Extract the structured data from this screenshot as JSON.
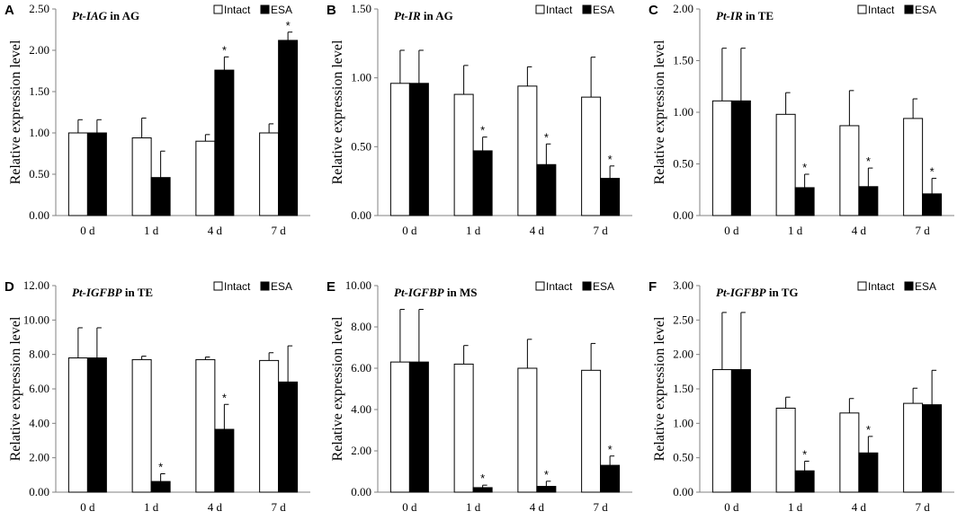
{
  "figure": {
    "ylabel": "Relative expression level",
    "categories": [
      "0 d",
      "1 d",
      "4 d",
      "7 d"
    ],
    "legend": {
      "series1": "Intact",
      "series2": "ESA"
    },
    "colors": {
      "intact_fill": "#ffffff",
      "esa_fill": "#000000",
      "stroke": "#000000",
      "axis": "#808080"
    }
  },
  "chart_data": [
    {
      "panel": "A",
      "type": "bar",
      "title_gene": "Pt-IAG",
      "title_rest": " in AG",
      "xlabel": "",
      "ylabel": "Relative expression level",
      "ylim": [
        0,
        2.5
      ],
      "yticks": [
        "0.00",
        "0.50",
        "1.00",
        "1.50",
        "2.00",
        "2.50"
      ],
      "ytick_values": [
        0,
        0.5,
        1.0,
        1.5,
        2.0,
        2.5
      ],
      "categories": [
        "0 d",
        "1 d",
        "4 d",
        "7 d"
      ],
      "series": [
        {
          "name": "Intact",
          "values": [
            1.0,
            0.94,
            0.9,
            1.0
          ],
          "errors": [
            0.16,
            0.24,
            0.08,
            0.11
          ],
          "significant": [
            false,
            false,
            false,
            false
          ]
        },
        {
          "name": "ESA",
          "values": [
            1.0,
            0.46,
            1.76,
            2.12
          ],
          "errors": [
            0.16,
            0.32,
            0.16,
            0.1
          ],
          "significant": [
            false,
            false,
            true,
            true
          ]
        }
      ],
      "star": "*"
    },
    {
      "panel": "B",
      "type": "bar",
      "title_gene": "Pt-IR",
      "title_rest": " in AG",
      "xlabel": "",
      "ylabel": "Relative expression level",
      "ylim": [
        0,
        1.5
      ],
      "yticks": [
        "0.00",
        "0.50",
        "1.00",
        "1.50"
      ],
      "ytick_values": [
        0,
        0.5,
        1.0,
        1.5
      ],
      "categories": [
        "0 d",
        "1 d",
        "4 d",
        "7 d"
      ],
      "series": [
        {
          "name": "Intact",
          "values": [
            0.96,
            0.88,
            0.94,
            0.86
          ],
          "errors": [
            0.24,
            0.21,
            0.14,
            0.29
          ],
          "significant": [
            false,
            false,
            false,
            false
          ]
        },
        {
          "name": "ESA",
          "values": [
            0.96,
            0.47,
            0.37,
            0.27
          ],
          "errors": [
            0.24,
            0.1,
            0.15,
            0.09
          ],
          "significant": [
            false,
            true,
            true,
            true
          ]
        }
      ],
      "star": "*"
    },
    {
      "panel": "C",
      "type": "bar",
      "title_gene": "Pt-IR",
      "title_rest": " in TE",
      "xlabel": "",
      "ylabel": "Relative expression level",
      "ylim": [
        0,
        2.0
      ],
      "yticks": [
        "0.00",
        "0.50",
        "1.00",
        "1.50",
        "2.00"
      ],
      "ytick_values": [
        0,
        0.5,
        1.0,
        1.5,
        2.0
      ],
      "categories": [
        "0 d",
        "1 d",
        "4 d",
        "7 d"
      ],
      "series": [
        {
          "name": "Intact",
          "values": [
            1.11,
            0.98,
            0.87,
            0.94
          ],
          "errors": [
            0.51,
            0.21,
            0.34,
            0.19
          ],
          "significant": [
            false,
            false,
            false,
            false
          ]
        },
        {
          "name": "ESA",
          "values": [
            1.11,
            0.27,
            0.28,
            0.21
          ],
          "errors": [
            0.51,
            0.13,
            0.18,
            0.15
          ],
          "significant": [
            false,
            true,
            true,
            true
          ]
        }
      ],
      "star": "*"
    },
    {
      "panel": "D",
      "type": "bar",
      "title_gene": "Pt-IGFBP",
      "title_rest": " in TE",
      "xlabel": "",
      "ylabel": "Relative expression level",
      "ylim": [
        0,
        12.0
      ],
      "yticks": [
        "0.00",
        "2.00",
        "4.00",
        "6.00",
        "8.00",
        "10.00",
        "12.00"
      ],
      "ytick_values": [
        0,
        2,
        4,
        6,
        8,
        10,
        12
      ],
      "categories": [
        "0 d",
        "1 d",
        "4 d",
        "7 d"
      ],
      "series": [
        {
          "name": "Intact",
          "values": [
            7.8,
            7.7,
            7.7,
            7.65
          ],
          "errors": [
            1.75,
            0.2,
            0.15,
            0.45
          ],
          "significant": [
            false,
            false,
            false,
            false
          ]
        },
        {
          "name": "ESA",
          "values": [
            7.8,
            0.62,
            3.65,
            6.4
          ],
          "errors": [
            1.75,
            0.45,
            1.45,
            2.1
          ],
          "significant": [
            false,
            true,
            true,
            false
          ]
        }
      ],
      "star": "*"
    },
    {
      "panel": "E",
      "type": "bar",
      "title_gene": "Pt-IGFBP",
      "title_rest": " in MS",
      "xlabel": "",
      "ylabel": "Relative expression level",
      "ylim": [
        0,
        10.0
      ],
      "yticks": [
        "0.00",
        "2.00",
        "4.00",
        "6.00",
        "8.00",
        "10.00"
      ],
      "ytick_values": [
        0,
        2,
        4,
        6,
        8,
        10
      ],
      "categories": [
        "0 d",
        "1 d",
        "4 d",
        "7 d"
      ],
      "series": [
        {
          "name": "Intact",
          "values": [
            6.3,
            6.2,
            6.0,
            5.9
          ],
          "errors": [
            2.55,
            0.9,
            1.4,
            1.3
          ],
          "significant": [
            false,
            false,
            false,
            false
          ]
        },
        {
          "name": "ESA",
          "values": [
            6.3,
            0.22,
            0.28,
            1.3
          ],
          "errors": [
            2.55,
            0.12,
            0.25,
            0.45
          ],
          "significant": [
            false,
            true,
            true,
            true
          ]
        }
      ],
      "star": "*"
    },
    {
      "panel": "F",
      "type": "bar",
      "title_gene": "Pt-IGFBP",
      "title_rest": " in TG",
      "xlabel": "",
      "ylabel": "Relative expression level",
      "ylim": [
        0,
        3.0
      ],
      "yticks": [
        "0.00",
        "0.50",
        "1.00",
        "1.50",
        "2.00",
        "2.50",
        "3.00"
      ],
      "ytick_values": [
        0,
        0.5,
        1.0,
        1.5,
        2.0,
        2.5,
        3.0
      ],
      "categories": [
        "0 d",
        "1 d",
        "4 d",
        "7 d"
      ],
      "series": [
        {
          "name": "Intact",
          "values": [
            1.78,
            1.22,
            1.15,
            1.29
          ],
          "errors": [
            0.83,
            0.16,
            0.21,
            0.22
          ],
          "significant": [
            false,
            false,
            false,
            false
          ]
        },
        {
          "name": "ESA",
          "values": [
            1.78,
            0.31,
            0.57,
            1.27
          ],
          "errors": [
            0.83,
            0.14,
            0.24,
            0.5
          ],
          "significant": [
            false,
            true,
            true,
            false
          ]
        }
      ],
      "star": "*"
    }
  ]
}
